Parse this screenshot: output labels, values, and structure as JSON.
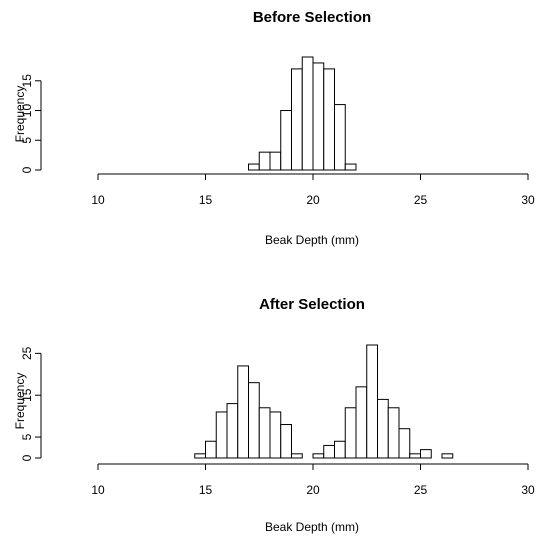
{
  "chart_data": [
    {
      "type": "bar",
      "subtype": "histogram",
      "title": "Before Selection",
      "xlabel": "Beak Depth (mm)",
      "ylabel": "Frequency",
      "xlim": [
        10,
        30
      ],
      "ylim": [
        0,
        19
      ],
      "xticks": [
        "10",
        "15",
        "20",
        "25",
        "30"
      ],
      "yticks": [
        "0",
        "5",
        "10",
        "15"
      ],
      "bin_width": 0.5,
      "bins": [
        {
          "x0": 17.0,
          "x1": 17.5,
          "count": 1
        },
        {
          "x0": 17.5,
          "x1": 18.0,
          "count": 3
        },
        {
          "x0": 18.0,
          "x1": 18.5,
          "count": 3
        },
        {
          "x0": 18.5,
          "x1": 19.0,
          "count": 10
        },
        {
          "x0": 19.0,
          "x1": 19.5,
          "count": 17
        },
        {
          "x0": 19.5,
          "x1": 20.0,
          "count": 19
        },
        {
          "x0": 20.0,
          "x1": 20.5,
          "count": 18
        },
        {
          "x0": 20.5,
          "x1": 21.0,
          "count": 17
        },
        {
          "x0": 21.0,
          "x1": 21.5,
          "count": 11
        },
        {
          "x0": 21.5,
          "x1": 22.0,
          "count": 1
        }
      ]
    },
    {
      "type": "bar",
      "subtype": "histogram",
      "title": "After Selection",
      "xlabel": "Beak Depth (mm)",
      "ylabel": "Frequency",
      "xlim": [
        10,
        30
      ],
      "ylim": [
        0,
        27
      ],
      "xticks": [
        "10",
        "15",
        "20",
        "25",
        "30"
      ],
      "yticks": [
        "0",
        "5",
        "15",
        "25"
      ],
      "bin_width": 0.5,
      "bins": [
        {
          "x0": 14.5,
          "x1": 15.0,
          "count": 1
        },
        {
          "x0": 15.0,
          "x1": 15.5,
          "count": 4
        },
        {
          "x0": 15.5,
          "x1": 16.0,
          "count": 11
        },
        {
          "x0": 16.0,
          "x1": 16.5,
          "count": 13
        },
        {
          "x0": 16.5,
          "x1": 17.0,
          "count": 22
        },
        {
          "x0": 17.0,
          "x1": 17.5,
          "count": 18
        },
        {
          "x0": 17.5,
          "x1": 18.0,
          "count": 12
        },
        {
          "x0": 18.0,
          "x1": 18.5,
          "count": 11
        },
        {
          "x0": 18.5,
          "x1": 19.0,
          "count": 8
        },
        {
          "x0": 19.0,
          "x1": 19.5,
          "count": 1
        },
        {
          "x0": 20.0,
          "x1": 20.5,
          "count": 1
        },
        {
          "x0": 20.5,
          "x1": 21.0,
          "count": 3
        },
        {
          "x0": 21.0,
          "x1": 21.5,
          "count": 4
        },
        {
          "x0": 21.5,
          "x1": 22.0,
          "count": 12
        },
        {
          "x0": 22.0,
          "x1": 22.5,
          "count": 17
        },
        {
          "x0": 22.5,
          "x1": 23.0,
          "count": 27
        },
        {
          "x0": 23.0,
          "x1": 23.5,
          "count": 14
        },
        {
          "x0": 23.5,
          "x1": 24.0,
          "count": 12
        },
        {
          "x0": 24.0,
          "x1": 24.5,
          "count": 7
        },
        {
          "x0": 24.5,
          "x1": 25.0,
          "count": 1
        },
        {
          "x0": 25.0,
          "x1": 25.5,
          "count": 2
        },
        {
          "x0": 25.5,
          "x1": 26.0,
          "count": 0
        },
        {
          "x0": 26.0,
          "x1": 26.5,
          "count": 1
        }
      ]
    }
  ]
}
